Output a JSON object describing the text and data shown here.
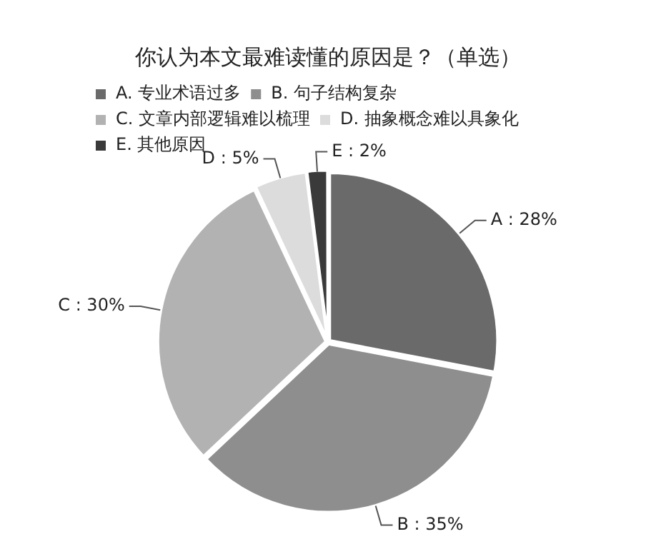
{
  "chart_data": {
    "type": "pie",
    "title": "你认为本文最难读懂的原因是？（单选）",
    "categories": [
      "A. 专业术语过多",
      "B. 句子结构复杂",
      "C. 文章内部逻辑难以梳理",
      "D. 抽象概念难以具象化",
      "E. 其他原因"
    ],
    "values": [
      28,
      35,
      30,
      5,
      2
    ],
    "colors": [
      "#6a6a6a",
      "#8e8e8e",
      "#b2b2b2",
      "#dcdcdc",
      "#3a3a3a"
    ],
    "value_labels": [
      "A : 28%",
      "B : 35%",
      "C : 30%",
      "D : 5%",
      "E : 2%"
    ],
    "legend": "top"
  }
}
